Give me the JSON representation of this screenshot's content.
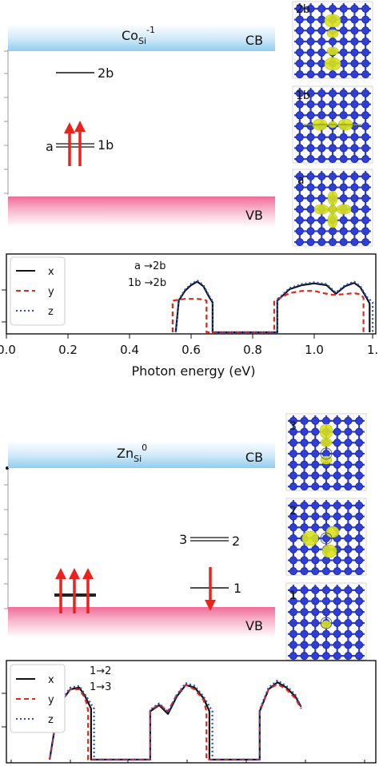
{
  "top": {
    "title_main": "Co",
    "title_sub": "Si",
    "title_sup": "-1",
    "cb_label": "CB",
    "vb_label": "VB",
    "levels": {
      "level_2b": "2b",
      "level_1b": "1b",
      "level_a": "a"
    },
    "panels": [
      "2b",
      "1b",
      "a"
    ],
    "legend": [
      "x",
      "y",
      "z"
    ],
    "annotations": [
      "a →2b",
      "1b →2b"
    ],
    "xticks": [
      "0.0",
      "0.2",
      "0.4",
      "0.6",
      "0.8",
      "1.0",
      "1."
    ],
    "xlabel": "Photon energy (eV)"
  },
  "bottom": {
    "title_main": "Zn",
    "title_sub": "Si",
    "title_sup": "0",
    "cb_label": "CB",
    "vb_label": "VB",
    "levels": {
      "level_3": "3",
      "level_2": "2",
      "level_1": "1"
    },
    "panels": [
      "3",
      "2",
      "1"
    ],
    "legend": [
      "x",
      "y",
      "z"
    ],
    "annotations": [
      "1→2",
      "1→3"
    ]
  },
  "colors": {
    "cb": "#9fd3f0",
    "vb": "#f27fa6",
    "arrow": "#e8241c",
    "x_line": "#111111",
    "y_line": "#e3261c",
    "z_line": "#1f4fbf",
    "atom": "#2f3fd6",
    "density": "#d9e21a"
  },
  "chart_data": [
    {
      "type": "line",
      "xlabel": "Photon energy (eV)",
      "xlim": [
        0.0,
        1.2
      ],
      "x_ticks": [
        "0.0",
        "0.2",
        "0.4",
        "0.6",
        "0.8",
        "1.0"
      ],
      "series": [
        {
          "name": "x",
          "x": [
            0.55,
            0.56,
            0.58,
            0.6,
            0.62,
            0.64,
            0.66,
            0.67,
            0.67,
            0.88,
            0.88,
            0.92,
            0.96,
            1.0,
            1.04,
            1.07,
            1.1,
            1.13,
            1.15,
            1.17,
            1.18,
            1.18
          ],
          "y": [
            0.0,
            0.55,
            0.72,
            0.82,
            0.88,
            0.8,
            0.6,
            0.52,
            0.0,
            0.0,
            0.55,
            0.75,
            0.82,
            0.85,
            0.82,
            0.67,
            0.8,
            0.86,
            0.78,
            0.6,
            0.5,
            0.0
          ]
        },
        {
          "name": "y",
          "x": [
            0.54,
            0.54,
            0.58,
            0.62,
            0.64,
            0.65,
            0.65,
            0.87,
            0.87,
            0.92,
            0.96,
            1.0,
            1.03,
            1.06,
            1.09,
            1.13,
            1.15,
            1.16,
            1.16
          ],
          "y": [
            0.0,
            0.55,
            0.58,
            0.58,
            0.57,
            0.55,
            0.0,
            0.0,
            0.55,
            0.68,
            0.72,
            0.72,
            0.68,
            0.65,
            0.66,
            0.68,
            0.66,
            0.6,
            0.0
          ]
        },
        {
          "name": "z",
          "x": [
            0.55,
            0.56,
            0.58,
            0.6,
            0.62,
            0.64,
            0.66,
            0.67,
            0.67,
            0.88,
            0.88,
            0.92,
            0.96,
            1.0,
            1.04,
            1.07,
            1.1,
            1.13,
            1.15,
            1.17,
            1.19,
            1.19
          ],
          "y": [
            0.0,
            0.57,
            0.74,
            0.84,
            0.9,
            0.82,
            0.62,
            0.54,
            0.0,
            0.0,
            0.57,
            0.77,
            0.84,
            0.87,
            0.84,
            0.69,
            0.82,
            0.88,
            0.8,
            0.62,
            0.52,
            0.0
          ]
        }
      ]
    },
    {
      "type": "line",
      "x_ticks": [],
      "series": [
        {
          "name": "x",
          "x": [
            0.53,
            0.56,
            0.6,
            0.63,
            0.65,
            0.67,
            0.67,
            0.87,
            0.87,
            0.9,
            0.93,
            0.96,
            0.99,
            1.02,
            1.05,
            1.07,
            1.07,
            1.24,
            1.24,
            1.27,
            1.3,
            1.33,
            1.36,
            1.38
          ],
          "y": [
            0.0,
            0.62,
            0.8,
            0.82,
            0.72,
            0.58,
            0.0,
            0.0,
            0.55,
            0.62,
            0.52,
            0.72,
            0.85,
            0.82,
            0.7,
            0.55,
            0.0,
            0.0,
            0.55,
            0.8,
            0.88,
            0.82,
            0.72,
            0.6
          ]
        },
        {
          "name": "y",
          "x": [
            0.53,
            0.56,
            0.6,
            0.63,
            0.65,
            0.66,
            0.66,
            0.87,
            0.87,
            0.9,
            0.93,
            0.96,
            0.99,
            1.02,
            1.05,
            1.06,
            1.06,
            1.24,
            1.24,
            1.27,
            1.3,
            1.33,
            1.36,
            1.38
          ],
          "y": [
            0.0,
            0.63,
            0.8,
            0.8,
            0.7,
            0.56,
            0.0,
            0.0,
            0.56,
            0.63,
            0.55,
            0.74,
            0.85,
            0.8,
            0.68,
            0.55,
            0.0,
            0.0,
            0.56,
            0.8,
            0.86,
            0.8,
            0.7,
            0.58
          ]
        },
        {
          "name": "z",
          "x": [
            0.53,
            0.56,
            0.6,
            0.63,
            0.65,
            0.68,
            0.68,
            0.87,
            0.87,
            0.9,
            0.93,
            0.96,
            0.99,
            1.02,
            1.05,
            1.08,
            1.08,
            1.24,
            1.24,
            1.27,
            1.3,
            1.33,
            1.36,
            1.38
          ],
          "y": [
            0.0,
            0.64,
            0.82,
            0.84,
            0.74,
            0.58,
            0.0,
            0.0,
            0.57,
            0.64,
            0.54,
            0.74,
            0.87,
            0.84,
            0.72,
            0.55,
            0.0,
            0.0,
            0.57,
            0.82,
            0.9,
            0.84,
            0.74,
            0.6
          ]
        }
      ]
    }
  ]
}
